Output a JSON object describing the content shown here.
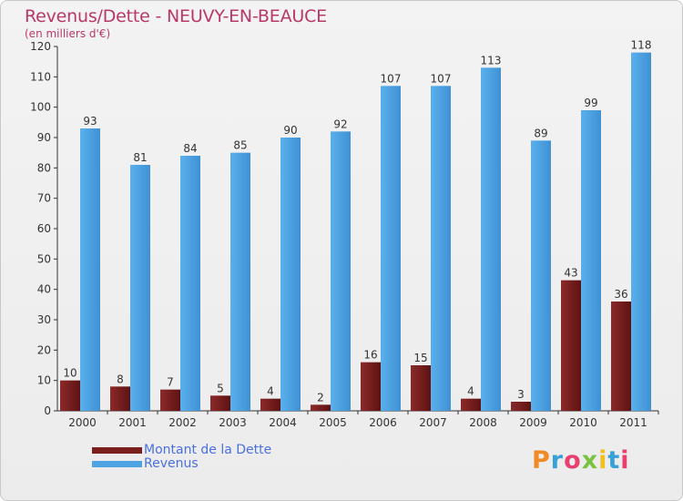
{
  "chart_data": {
    "type": "bar",
    "title": "Revenus/Dette - NEUVY-EN-BEAUCE",
    "subtitle": "(en milliers d'€)",
    "categories": [
      "2000",
      "2001",
      "2002",
      "2003",
      "2004",
      "2005",
      "2006",
      "2007",
      "2008",
      "2009",
      "2010",
      "2011"
    ],
    "series": [
      {
        "name": "Montant de la Dette",
        "color": "#7a1e1e",
        "values": [
          10,
          8,
          7,
          5,
          4,
          2,
          16,
          15,
          4,
          3,
          43,
          36
        ]
      },
      {
        "name": "Revenus",
        "color": "#4ea3e2",
        "values": [
          93,
          81,
          84,
          85,
          90,
          92,
          107,
          107,
          113,
          89,
          99,
          118
        ]
      }
    ],
    "ylim": [
      0,
      120
    ],
    "yticks": [
      0,
      10,
      20,
      30,
      40,
      50,
      60,
      70,
      80,
      90,
      100,
      110,
      120
    ],
    "grid": false,
    "legend_position": "bottom-left"
  },
  "logo": {
    "letters": [
      "P",
      "r",
      "o",
      "x",
      "i",
      "t",
      "i"
    ],
    "colors": [
      "#f08a24",
      "#3aa0d8",
      "#e83f6f",
      "#7cc242",
      "#f0c020",
      "#3aa0d8",
      "#e83f6f"
    ]
  }
}
